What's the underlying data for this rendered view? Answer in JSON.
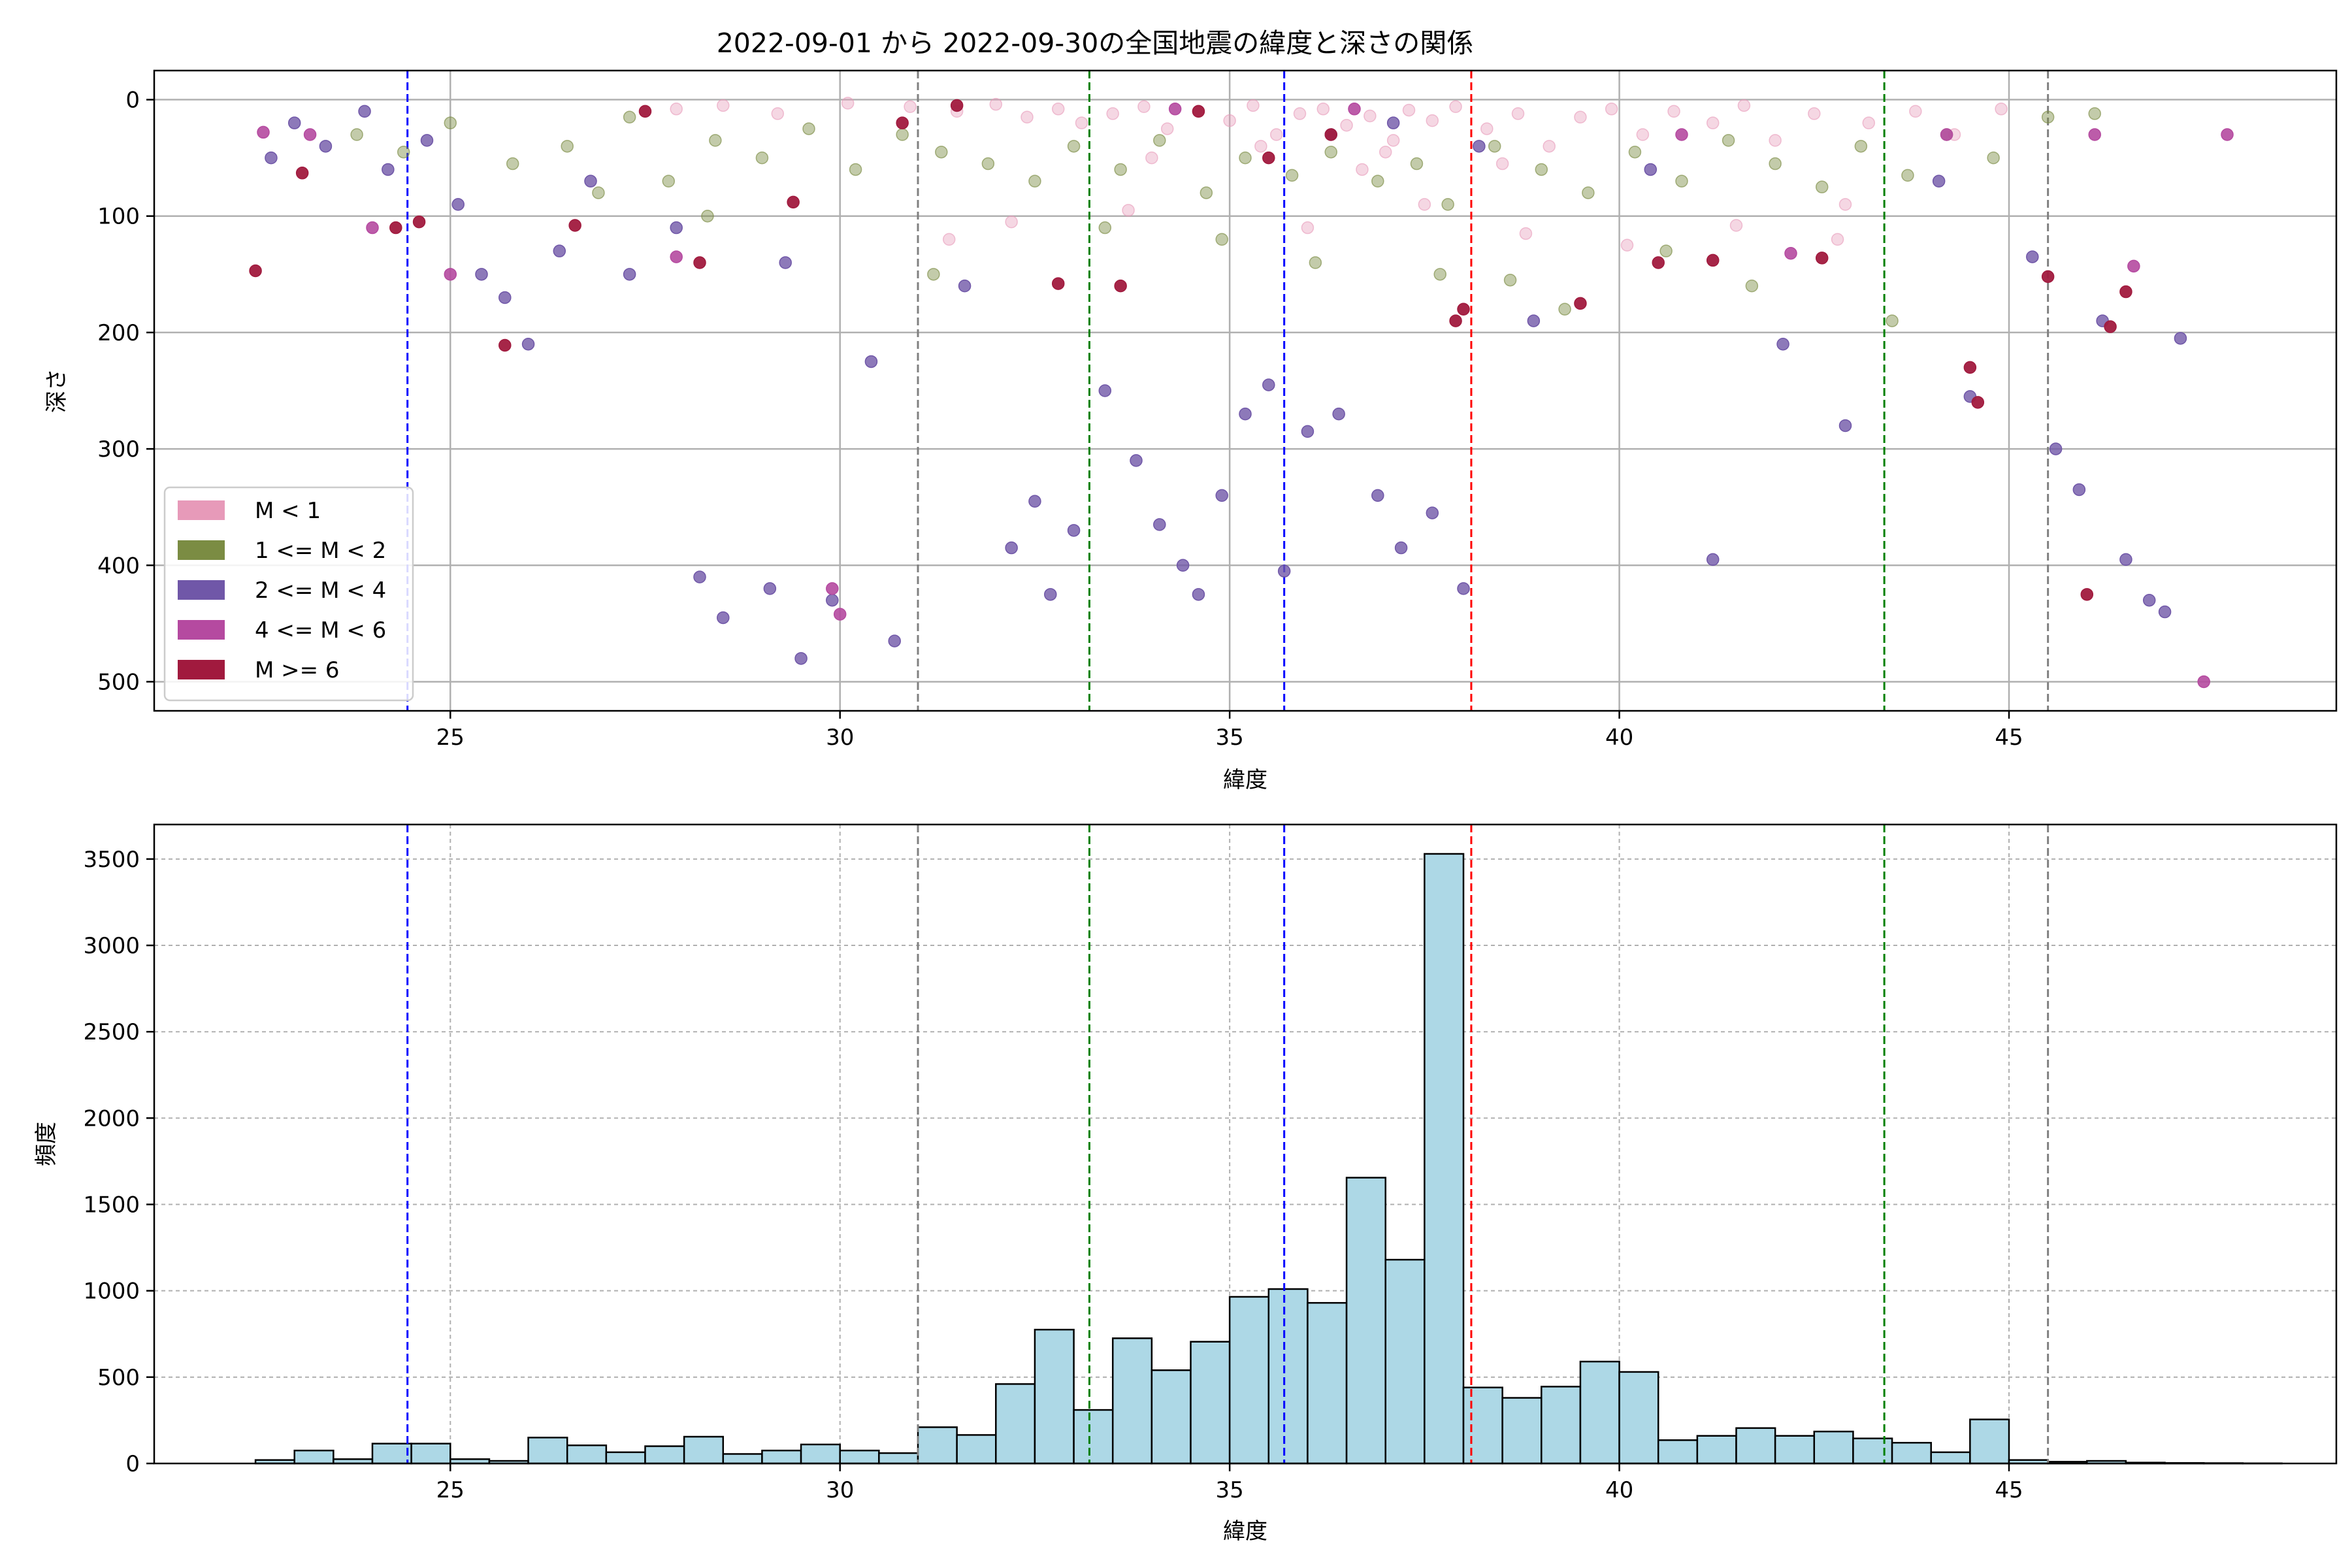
{
  "chart_data": [
    {
      "type": "scatter",
      "title": "2022-09-01 から 2022-09-30の全国地震の緯度と深さの関係",
      "xlabel": "緯度",
      "ylabel": "深さ",
      "xlim": [
        21.2,
        49.2
      ],
      "ylim": [
        525,
        -25
      ],
      "y_inverted": true,
      "x_ticks": [
        25,
        30,
        35,
        40,
        45
      ],
      "y_ticks": [
        0,
        100,
        200,
        300,
        400,
        500
      ],
      "grid": true,
      "legend_position": "lower-left",
      "vlines": [
        {
          "x": 24.45,
          "color": "#0000ff"
        },
        {
          "x": 31.0,
          "color": "#808080"
        },
        {
          "x": 33.2,
          "color": "#008000"
        },
        {
          "x": 35.7,
          "color": "#0000ff"
        },
        {
          "x": 38.1,
          "color": "#ff0000"
        },
        {
          "x": 43.4,
          "color": "#008000"
        },
        {
          "x": 45.5,
          "color": "#808080"
        }
      ],
      "series": [
        {
          "name": "M < 1",
          "color": "#e79ab9",
          "opacity": 0.4,
          "points": [
            [
              27.9,
              8
            ],
            [
              28.5,
              5
            ],
            [
              29.2,
              12
            ],
            [
              30.1,
              3
            ],
            [
              30.9,
              6
            ],
            [
              31.5,
              10
            ],
            [
              32.0,
              4
            ],
            [
              32.4,
              15
            ],
            [
              32.8,
              8
            ],
            [
              33.1,
              20
            ],
            [
              33.5,
              12
            ],
            [
              33.9,
              6
            ],
            [
              34.2,
              25
            ],
            [
              34.6,
              10
            ],
            [
              35.0,
              18
            ],
            [
              35.3,
              5
            ],
            [
              35.6,
              30
            ],
            [
              35.9,
              12
            ],
            [
              36.2,
              8
            ],
            [
              36.5,
              22
            ],
            [
              36.8,
              14
            ],
            [
              37.1,
              35
            ],
            [
              37.3,
              9
            ],
            [
              37.6,
              18
            ],
            [
              37.9,
              6
            ],
            [
              38.3,
              25
            ],
            [
              38.7,
              12
            ],
            [
              39.1,
              40
            ],
            [
              39.5,
              15
            ],
            [
              39.9,
              8
            ],
            [
              40.3,
              30
            ],
            [
              40.7,
              10
            ],
            [
              41.2,
              20
            ],
            [
              41.6,
              5
            ],
            [
              42.0,
              35
            ],
            [
              42.5,
              12
            ],
            [
              42.9,
              90
            ],
            [
              43.2,
              20
            ],
            [
              43.8,
              10
            ],
            [
              44.3,
              30
            ],
            [
              44.9,
              8
            ],
            [
              31.4,
              120
            ],
            [
              32.2,
              105
            ],
            [
              33.7,
              95
            ],
            [
              36.0,
              110
            ],
            [
              37.5,
              90
            ],
            [
              38.8,
              115
            ],
            [
              40.1,
              125
            ],
            [
              41.5,
              108
            ],
            [
              42.8,
              120
            ],
            [
              35.4,
              40
            ],
            [
              34.0,
              50
            ],
            [
              36.7,
              60
            ],
            [
              37.0,
              45
            ],
            [
              38.5,
              55
            ]
          ]
        },
        {
          "name": "1 <= M < 2",
          "color": "#7b8c43",
          "opacity": 0.45,
          "points": [
            [
              23.8,
              30
            ],
            [
              24.4,
              45
            ],
            [
              25.0,
              20
            ],
            [
              25.8,
              55
            ],
            [
              26.5,
              40
            ],
            [
              27.3,
              15
            ],
            [
              27.8,
              70
            ],
            [
              28.4,
              35
            ],
            [
              29.0,
              50
            ],
            [
              29.6,
              25
            ],
            [
              30.2,
              60
            ],
            [
              30.8,
              30
            ],
            [
              31.3,
              45
            ],
            [
              31.9,
              55
            ],
            [
              32.5,
              70
            ],
            [
              33.0,
              40
            ],
            [
              33.6,
              60
            ],
            [
              34.1,
              35
            ],
            [
              34.7,
              80
            ],
            [
              35.2,
              50
            ],
            [
              35.8,
              65
            ],
            [
              36.3,
              45
            ],
            [
              36.9,
              70
            ],
            [
              37.4,
              55
            ],
            [
              37.8,
              90
            ],
            [
              38.4,
              40
            ],
            [
              39.0,
              60
            ],
            [
              39.6,
              80
            ],
            [
              40.2,
              45
            ],
            [
              40.8,
              70
            ],
            [
              41.4,
              35
            ],
            [
              42.0,
              55
            ],
            [
              42.6,
              75
            ],
            [
              43.1,
              40
            ],
            [
              43.7,
              65
            ],
            [
              44.2,
              30
            ],
            [
              44.8,
              50
            ],
            [
              45.5,
              15
            ],
            [
              46.1,
              12
            ],
            [
              31.2,
              150
            ],
            [
              33.4,
              110
            ],
            [
              34.9,
              120
            ],
            [
              36.1,
              140
            ],
            [
              37.7,
              150
            ],
            [
              38.6,
              155
            ],
            [
              39.3,
              180
            ],
            [
              40.6,
              130
            ],
            [
              41.7,
              160
            ],
            [
              43.5,
              190
            ],
            [
              28.3,
              100
            ],
            [
              26.9,
              80
            ]
          ]
        },
        {
          "name": "2 <= M < 4",
          "color": "#7057a8",
          "opacity": 0.8,
          "points": [
            [
              22.7,
              50
            ],
            [
              23.0,
              20
            ],
            [
              23.4,
              40
            ],
            [
              23.9,
              10
            ],
            [
              24.2,
              60
            ],
            [
              24.7,
              35
            ],
            [
              25.1,
              90
            ],
            [
              25.4,
              150
            ],
            [
              25.7,
              170
            ],
            [
              26.0,
              210
            ],
            [
              26.4,
              130
            ],
            [
              26.8,
              70
            ],
            [
              27.3,
              150
            ],
            [
              27.9,
              110
            ],
            [
              28.2,
              410
            ],
            [
              28.5,
              445
            ],
            [
              29.1,
              420
            ],
            [
              29.3,
              140
            ],
            [
              29.5,
              480
            ],
            [
              29.9,
              430
            ],
            [
              30.4,
              225
            ],
            [
              30.7,
              465
            ],
            [
              31.6,
              160
            ],
            [
              32.2,
              385
            ],
            [
              32.5,
              345
            ],
            [
              32.7,
              425
            ],
            [
              33.0,
              370
            ],
            [
              33.4,
              250
            ],
            [
              33.8,
              310
            ],
            [
              34.1,
              365
            ],
            [
              34.4,
              400
            ],
            [
              34.6,
              425
            ],
            [
              34.9,
              340
            ],
            [
              35.2,
              270
            ],
            [
              35.5,
              245
            ],
            [
              35.7,
              405
            ],
            [
              36.0,
              285
            ],
            [
              36.4,
              270
            ],
            [
              36.9,
              340
            ],
            [
              37.2,
              385
            ],
            [
              37.6,
              355
            ],
            [
              38.0,
              420
            ],
            [
              38.9,
              190
            ],
            [
              40.4,
              60
            ],
            [
              41.2,
              395
            ],
            [
              42.1,
              210
            ],
            [
              42.9,
              280
            ],
            [
              44.1,
              70
            ],
            [
              44.5,
              255
            ],
            [
              45.3,
              135
            ],
            [
              45.6,
              300
            ],
            [
              45.9,
              335
            ],
            [
              46.2,
              190
            ],
            [
              46.5,
              395
            ],
            [
              46.8,
              430
            ],
            [
              47.0,
              440
            ],
            [
              47.2,
              205
            ],
            [
              36.3,
              30
            ],
            [
              37.1,
              20
            ],
            [
              38.2,
              40
            ]
          ]
        },
        {
          "name": "4 <= M < 6",
          "color": "#b54aa0",
          "opacity": 0.9,
          "points": [
            [
              22.6,
              28
            ],
            [
              23.2,
              30
            ],
            [
              24.0,
              110
            ],
            [
              25.0,
              150
            ],
            [
              27.9,
              135
            ],
            [
              29.9,
              420
            ],
            [
              30.0,
              442
            ],
            [
              34.3,
              8
            ],
            [
              36.6,
              8
            ],
            [
              40.8,
              30
            ],
            [
              42.2,
              132
            ],
            [
              44.2,
              30
            ],
            [
              46.1,
              30
            ],
            [
              46.6,
              143
            ],
            [
              47.5,
              500
            ],
            [
              47.8,
              30
            ]
          ]
        },
        {
          "name": "M >= 6",
          "color": "#a11a3e",
          "opacity": 0.95,
          "points": [
            [
              22.5,
              147
            ],
            [
              23.1,
              63
            ],
            [
              24.3,
              110
            ],
            [
              24.6,
              105
            ],
            [
              25.7,
              211
            ],
            [
              26.6,
              108
            ],
            [
              27.5,
              10
            ],
            [
              28.2,
              140
            ],
            [
              29.4,
              88
            ],
            [
              30.8,
              20
            ],
            [
              31.5,
              5
            ],
            [
              32.8,
              158
            ],
            [
              33.6,
              160
            ],
            [
              34.6,
              10
            ],
            [
              35.5,
              50
            ],
            [
              36.3,
              30
            ],
            [
              37.9,
              190
            ],
            [
              38.0,
              180
            ],
            [
              39.5,
              175
            ],
            [
              40.5,
              140
            ],
            [
              41.2,
              138
            ],
            [
              42.6,
              136
            ],
            [
              44.5,
              230
            ],
            [
              44.6,
              260
            ],
            [
              45.5,
              152
            ],
            [
              46.0,
              425
            ],
            [
              46.3,
              195
            ],
            [
              46.5,
              165
            ]
          ]
        }
      ]
    },
    {
      "type": "bar",
      "subtype": "histogram",
      "xlabel": "緯度",
      "ylabel": "頻度",
      "xlim": [
        21.2,
        49.2
      ],
      "ylim": [
        0,
        3700
      ],
      "x_ticks": [
        25,
        30,
        35,
        40,
        45
      ],
      "y_ticks": [
        0,
        500,
        1000,
        1500,
        2000,
        2500,
        3000,
        3500
      ],
      "grid": true,
      "bar_color": "#add8e6",
      "bin_start": 22.5,
      "bin_width": 0.5,
      "values": [
        20,
        75,
        25,
        115,
        115,
        25,
        15,
        150,
        105,
        65,
        100,
        155,
        55,
        75,
        110,
        75,
        60,
        210,
        165,
        460,
        775,
        310,
        725,
        540,
        705,
        965,
        1010,
        930,
        1655,
        1180,
        3530,
        440,
        380,
        445,
        590,
        530,
        135,
        160,
        205,
        160,
        185,
        145,
        120,
        65,
        255,
        20,
        10,
        15,
        5,
        3,
        2,
        1
      ],
      "vlines": [
        {
          "x": 24.45,
          "color": "#0000ff"
        },
        {
          "x": 31.0,
          "color": "#808080"
        },
        {
          "x": 33.2,
          "color": "#008000"
        },
        {
          "x": 35.7,
          "color": "#0000ff"
        },
        {
          "x": 38.1,
          "color": "#ff0000"
        },
        {
          "x": 43.4,
          "color": "#008000"
        },
        {
          "x": 45.5,
          "color": "#808080"
        }
      ]
    }
  ]
}
